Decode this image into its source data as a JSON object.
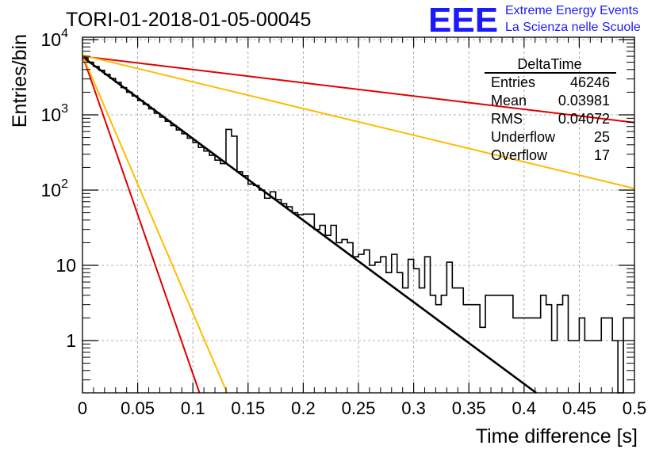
{
  "header": {
    "run_title": "TORI-01-2018-01-05-00045",
    "logo_text": "EEE",
    "brand_line1": "Extreme Energy Events",
    "brand_line2": "La Scienza nelle Scuole"
  },
  "colors": {
    "accent_blue": "#1a1aff",
    "data_black": "#000000",
    "fit_red": "#e00000",
    "fit_orange": "#ffbb00",
    "grid": "#9a9a9a"
  },
  "stats_box": {
    "title": "DeltaTime",
    "rows": [
      {
        "label": "Entries",
        "value": "46246"
      },
      {
        "label": "Mean",
        "value": "0.03981"
      },
      {
        "label": "RMS",
        "value": "0.04072"
      },
      {
        "label": "Underflow",
        "value": "25"
      },
      {
        "label": "Overflow",
        "value": "17"
      }
    ]
  },
  "chart_data": {
    "type": "line",
    "title": "TORI-01-2018-01-05-00045",
    "xlabel": "Time difference [s]",
    "ylabel": "Entries/bin",
    "xlim": [
      0,
      0.5
    ],
    "ylim": [
      0.18,
      10000
    ],
    "yscale": "log",
    "grid": true,
    "x_ticks": [
      0,
      0.05,
      0.1,
      0.15,
      0.2,
      0.25,
      0.3,
      0.35,
      0.4,
      0.45,
      0.5
    ],
    "x_tick_labels": [
      "0",
      "0.05",
      "0.1",
      "0.15",
      "0.2",
      "0.25",
      "0.3",
      "0.35",
      "0.4",
      "0.45",
      "0.5"
    ],
    "y_ticks": [
      1,
      10,
      100,
      1000,
      10000
    ],
    "y_tick_labels": [
      "1",
      "10",
      "10^2",
      "10^3",
      "10^4"
    ],
    "histogram": {
      "bin_width": 0.005,
      "bin_edges_start": 0,
      "values": [
        5700,
        5000,
        4400,
        3900,
        3450,
        3050,
        2700,
        2300,
        2000,
        1780,
        1550,
        1380,
        1200,
        1050,
        930,
        820,
        720,
        630,
        560,
        490,
        430,
        370,
        330,
        290,
        250,
        225,
        640,
        520,
        175,
        155,
        120,
        115,
        100,
        78,
        95,
        75,
        66,
        60,
        50,
        47,
        48,
        48,
        30,
        34,
        25,
        34,
        20,
        22,
        20,
        13,
        14,
        16,
        10,
        11,
        13,
        8,
        14,
        8,
        5,
        12,
        9,
        5,
        13,
        4,
        3,
        4,
        11,
        5,
        5,
        3,
        3,
        3,
        1.5,
        4,
        4,
        4,
        4,
        4,
        2,
        2,
        2,
        2,
        2,
        4,
        3,
        1,
        3,
        4,
        1,
        1,
        2,
        1,
        1,
        1,
        2,
        2,
        1,
        0,
        2,
        2
      ]
    },
    "series": [
      {
        "color": "#000000",
        "style": "fit",
        "x": [
          0,
          0.411
        ],
        "y": [
          5900,
          0.18
        ]
      },
      {
        "color": "#e00000",
        "style": "fit",
        "x": [
          0,
          0.5
        ],
        "y": [
          6000,
          790
        ]
      },
      {
        "color": "#ffbb00",
        "style": "fit",
        "x": [
          0,
          0.5
        ],
        "y": [
          6200,
          105
        ]
      },
      {
        "color": "#e00000",
        "style": "fit",
        "x": [
          0,
          0.106
        ],
        "y": [
          6200,
          0.18
        ]
      },
      {
        "color": "#ffbb00",
        "style": "fit",
        "x": [
          0,
          0.131
        ],
        "y": [
          6200,
          0.18
        ]
      }
    ]
  }
}
